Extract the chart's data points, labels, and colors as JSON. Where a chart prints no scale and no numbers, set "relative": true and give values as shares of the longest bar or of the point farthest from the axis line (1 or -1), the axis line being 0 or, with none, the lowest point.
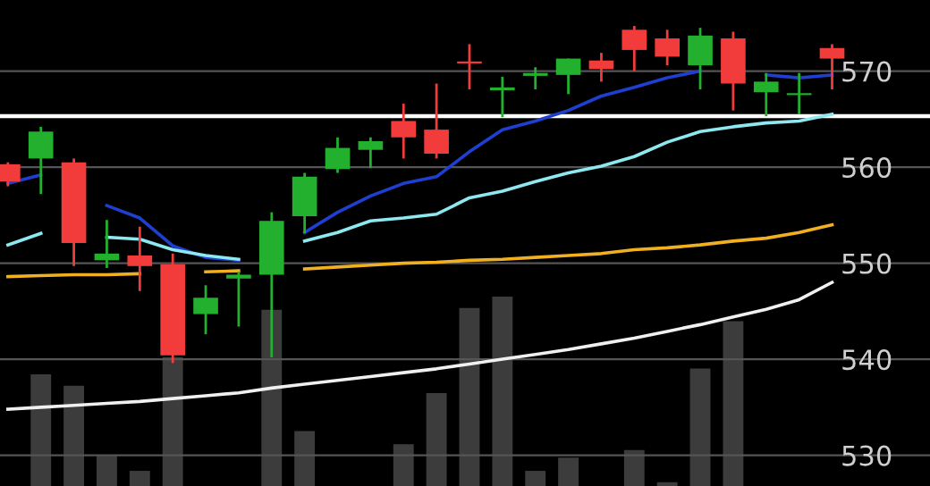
{
  "chart_data": [
    {
      "type": "candlestick",
      "categories": [
        null,
        null,
        null,
        null,
        null,
        null,
        null,
        null,
        null,
        null,
        null,
        null,
        null,
        null,
        null,
        null,
        null,
        null,
        null,
        null,
        null,
        null,
        null,
        null,
        null,
        null
      ],
      "ohlc": [
        [
          560.3,
          560.5,
          558.0,
          558.5
        ],
        [
          560.9,
          564.2,
          557.2,
          563.7
        ],
        [
          560.5,
          560.9,
          549.7,
          552.1
        ],
        [
          550.3,
          554.5,
          549.5,
          551.0
        ],
        [
          550.8,
          553.8,
          547.1,
          549.7
        ],
        [
          549.9,
          551.0,
          539.6,
          540.4
        ],
        [
          544.7,
          547.7,
          542.6,
          546.4
        ],
        [
          548.4,
          549.1,
          543.4,
          548.8
        ],
        [
          548.8,
          555.3,
          540.2,
          554.4
        ],
        [
          554.9,
          559.4,
          553.1,
          559.0
        ],
        [
          559.8,
          563.1,
          559.4,
          562.0
        ],
        [
          561.8,
          563.1,
          559.9,
          562.7
        ],
        [
          564.8,
          566.6,
          560.9,
          563.1
        ],
        [
          563.9,
          568.7,
          560.9,
          561.4
        ],
        [
          571.0,
          572.8,
          568.1,
          570.8
        ],
        [
          568.0,
          569.4,
          565.2,
          568.3
        ],
        [
          569.5,
          570.4,
          568.1,
          569.8
        ],
        [
          569.6,
          571.3,
          567.6,
          571.3
        ],
        [
          571.1,
          571.9,
          568.9,
          570.2
        ],
        [
          574.3,
          574.7,
          570.0,
          572.2
        ],
        [
          573.4,
          574.3,
          570.6,
          571.5
        ],
        [
          570.6,
          574.5,
          568.1,
          573.7
        ],
        [
          573.4,
          574.1,
          565.9,
          568.7
        ],
        [
          567.8,
          569.8,
          565.3,
          568.9
        ],
        [
          567.5,
          569.8,
          565.5,
          567.7
        ],
        [
          572.4,
          572.8,
          568.1,
          571.3
        ]
      ],
      "colors": [
        "#f23c3c",
        "#22b02e",
        "#f23c3c",
        "#22b02e",
        "#f23c3c",
        "#f23c3c",
        "#22b02e",
        "#22b02e",
        "#22b02e",
        "#22b02e",
        "#22b02e",
        "#22b02e",
        "#f23c3c",
        "#f23c3c",
        "#f23c3c",
        "#22b02e",
        "#22b02e",
        "#22b02e",
        "#f23c3c",
        "#f23c3c",
        "#f23c3c",
        "#22b02e",
        "#f23c3c",
        "#22b02e",
        "#22b02e",
        "#f23c3c"
      ],
      "series": [
        {
          "type": "line",
          "color": "#1f3fd0",
          "values": [
            558.3,
            559.2,
            null,
            556.0,
            554.7,
            551.8,
            550.6,
            550.3,
            null,
            553.2,
            555.3,
            557.0,
            558.3,
            559.0,
            561.6,
            563.9,
            564.8,
            565.9,
            567.4,
            568.3,
            569.3,
            570.0,
            null,
            569.6,
            569.3,
            569.6
          ]
        },
        {
          "type": "line",
          "color": "#8ee8f0",
          "values": [
            551.9,
            553.1,
            null,
            552.7,
            552.5,
            551.4,
            550.8,
            550.4,
            null,
            552.3,
            553.2,
            554.4,
            554.7,
            555.1,
            556.8,
            557.5,
            558.5,
            559.4,
            560.1,
            561.1,
            562.6,
            563.7,
            564.2,
            564.6,
            564.8,
            565.5
          ]
        },
        {
          "type": "line",
          "color": "#f0b020",
          "values": [
            548.6,
            548.7,
            548.8,
            548.8,
            548.9,
            null,
            549.1,
            549.2,
            null,
            549.4,
            549.6,
            549.8,
            550.0,
            550.1,
            550.3,
            550.4,
            550.6,
            550.8,
            551.0,
            551.4,
            551.6,
            551.9,
            552.3,
            552.6,
            553.2,
            554.0
          ]
        },
        {
          "type": "line",
          "color": "#f0f0f0",
          "values": [
            534.8,
            535.0,
            535.2,
            535.4,
            535.6,
            535.9,
            536.2,
            536.5,
            537.0,
            537.4,
            537.8,
            538.2,
            538.6,
            539.0,
            539.5,
            540.0,
            540.5,
            541.0,
            541.6,
            542.2,
            542.9,
            543.6,
            544.4,
            545.2,
            546.2,
            548.0
          ]
        }
      ],
      "ylim": [
        526.8,
        577.4
      ],
      "yticks": [
        530,
        540,
        550,
        560,
        570
      ],
      "grid": "y",
      "tick_labels": "y",
      "ref_lines": [
        {
          "axis": "y",
          "value": 565.3,
          "color": "#ffffff"
        }
      ]
    },
    {
      "type": "bar",
      "relative": true,
      "color": "#3c3c3c",
      "categories": [
        null,
        null,
        null,
        null,
        null,
        null,
        null,
        null,
        null,
        null,
        null,
        null,
        null,
        null,
        null,
        null,
        null,
        null,
        null,
        null,
        null,
        null,
        null,
        null,
        null,
        null
      ],
      "values": [
        null,
        0.59,
        0.53,
        0.16,
        0.08,
        0.68,
        null,
        null,
        0.93,
        0.29,
        null,
        null,
        0.22,
        0.49,
        0.94,
        1,
        0.08,
        0.15,
        null,
        0.19,
        0.02,
        0.62,
        0.87,
        null,
        null,
        null
      ]
    }
  ]
}
